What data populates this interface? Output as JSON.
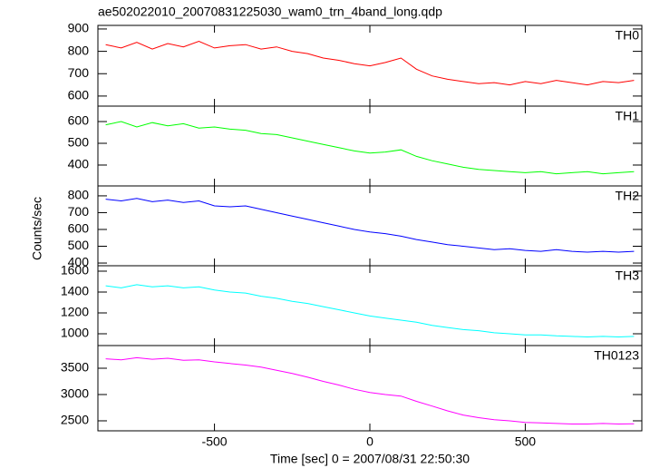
{
  "chart_data": {
    "type": "line",
    "title": "ae502022010_20070831225030_wam0_trn_4band_long.qdp",
    "xlabel": "Time [sec] 0 = 2007/08/31 22:50:30",
    "ylabel": "Counts/sec",
    "xlim": [
      -875,
      875
    ],
    "xticks": [
      -500,
      0,
      500
    ],
    "x": [
      -850,
      -800,
      -750,
      -700,
      -650,
      -600,
      -550,
      -500,
      -450,
      -400,
      -350,
      -300,
      -250,
      -200,
      -150,
      -100,
      -50,
      0,
      50,
      100,
      150,
      200,
      250,
      300,
      350,
      400,
      450,
      500,
      550,
      600,
      650,
      700,
      750,
      800,
      850
    ],
    "series": [
      {
        "name": "TH0",
        "color": "#ff0000",
        "ylim": [
          555,
          916
        ],
        "yticks": [
          600,
          700,
          800,
          900
        ],
        "values": [
          830,
          815,
          840,
          810,
          835,
          820,
          845,
          815,
          825,
          830,
          810,
          820,
          800,
          790,
          770,
          760,
          745,
          735,
          750,
          770,
          720,
          690,
          675,
          665,
          655,
          660,
          650,
          665,
          655,
          670,
          660,
          650,
          665,
          660,
          670
        ]
      },
      {
        "name": "TH1",
        "color": "#00ff00",
        "ylim": [
          304,
          671
        ],
        "yticks": [
          400,
          500,
          600
        ],
        "values": [
          585,
          600,
          575,
          595,
          580,
          590,
          570,
          575,
          565,
          560,
          545,
          540,
          525,
          510,
          495,
          480,
          465,
          455,
          460,
          470,
          440,
          420,
          405,
          390,
          380,
          375,
          370,
          365,
          370,
          360,
          365,
          370,
          360,
          365,
          370
        ]
      },
      {
        "name": "TH2",
        "color": "#0000ff",
        "ylim": [
          384,
          859
        ],
        "yticks": [
          400,
          500,
          600,
          700,
          800
        ],
        "values": [
          780,
          770,
          785,
          765,
          775,
          760,
          770,
          740,
          735,
          740,
          720,
          700,
          680,
          660,
          640,
          620,
          600,
          585,
          575,
          560,
          540,
          525,
          510,
          500,
          490,
          480,
          485,
          475,
          470,
          480,
          470,
          465,
          470,
          465,
          470
        ]
      },
      {
        "name": "TH3",
        "color": "#00ffff",
        "ylim": [
          887,
          1652
        ],
        "yticks": [
          1000,
          1200,
          1400,
          1600
        ],
        "values": [
          1460,
          1440,
          1470,
          1450,
          1460,
          1440,
          1450,
          1420,
          1400,
          1390,
          1360,
          1340,
          1310,
          1290,
          1260,
          1230,
          1200,
          1170,
          1150,
          1130,
          1110,
          1080,
          1060,
          1040,
          1030,
          1010,
          1000,
          990,
          990,
          980,
          975,
          970,
          975,
          970,
          975
        ]
      },
      {
        "name": "TH0123",
        "color": "#ff00ff",
        "ylim": [
          2310,
          3931
        ],
        "yticks": [
          2500,
          3000,
          3500
        ],
        "values": [
          3680,
          3660,
          3700,
          3670,
          3690,
          3650,
          3660,
          3620,
          3590,
          3560,
          3520,
          3460,
          3400,
          3330,
          3250,
          3180,
          3100,
          3040,
          3000,
          2970,
          2870,
          2780,
          2690,
          2610,
          2560,
          2520,
          2500,
          2470,
          2460,
          2450,
          2440,
          2440,
          2450,
          2440,
          2445
        ]
      }
    ]
  }
}
